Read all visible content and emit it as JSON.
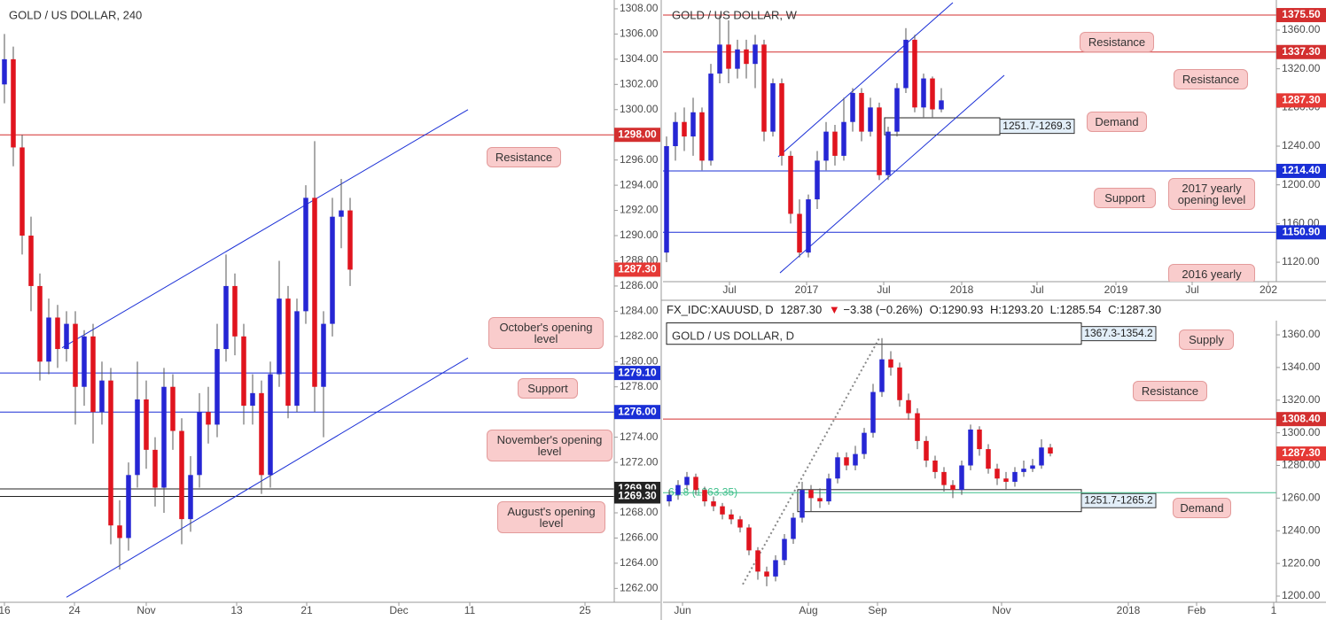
{
  "chart_data": [
    {
      "type": "candlestick",
      "title": "GOLD / US DOLLAR, 240",
      "xlim": [
        -0.5,
        68.8
      ],
      "xticks": [
        {
          "value": 0,
          "label": "16"
        },
        {
          "value": 7.9,
          "label": "24"
        },
        {
          "value": 16,
          "label": "Nov"
        },
        {
          "value": 26.2,
          "label": "13"
        },
        {
          "value": 34.1,
          "label": "21"
        },
        {
          "value": 44.5,
          "label": "Dec"
        },
        {
          "value": 52.5,
          "label": "11"
        },
        {
          "value": 65.5,
          "label": "25"
        }
      ],
      "ylim": [
        1260.9,
        1308.7
      ],
      "yticks": [
        {
          "value": 1262,
          "label": "1262.00"
        },
        {
          "value": 1264,
          "label": "1264.00"
        },
        {
          "value": 1266,
          "label": "1266.00"
        },
        {
          "value": 1268,
          "label": "1268.00"
        },
        {
          "value": 1272,
          "label": "1272.00"
        },
        {
          "value": 1274,
          "label": "1274.00"
        },
        {
          "value": 1278,
          "label": "1278.00"
        },
        {
          "value": 1280,
          "label": "1280.00"
        },
        {
          "value": 1282,
          "label": "1282.00"
        },
        {
          "value": 1284,
          "label": "1284.00"
        },
        {
          "value": 1286,
          "label": "1286.00"
        },
        {
          "value": 1288,
          "label": "1288.00"
        },
        {
          "value": 1290,
          "label": "1290.00"
        },
        {
          "value": 1292,
          "label": "1292.00"
        },
        {
          "value": 1294,
          "label": "1294.00"
        },
        {
          "value": 1296,
          "label": "1296.00"
        },
        {
          "value": 1300,
          "label": "1300.00"
        },
        {
          "value": 1302,
          "label": "1302.00"
        },
        {
          "value": 1304,
          "label": "1304.00"
        },
        {
          "value": 1306,
          "label": "1306.00"
        },
        {
          "value": 1308,
          "label": "1308.00"
        }
      ],
      "up_color": "#2626d4",
      "down_color": "#e0141e",
      "candles": {
        "x": [
          0,
          1,
          2,
          3,
          4,
          5,
          6,
          7,
          8,
          9,
          10,
          11,
          12,
          13,
          14,
          15,
          16,
          17,
          18,
          19,
          20,
          21,
          22,
          23,
          24,
          25,
          26,
          27,
          28,
          29,
          30,
          31,
          32,
          33,
          34,
          35,
          36,
          37,
          38,
          39
        ],
        "open": [
          1302.0,
          1304.0,
          1297.0,
          1290.0,
          1286.0,
          1280.0,
          1283.5,
          1281.0,
          1283.0,
          1278.0,
          1282.0,
          1276.0,
          1278.5,
          1267.0,
          1266.0,
          1271.0,
          1277.0,
          1273.0,
          1270.0,
          1278.0,
          1274.5,
          1267.5,
          1271.0,
          1276.0,
          1275.0,
          1281.0,
          1286.0,
          1282.0,
          1276.5,
          1277.5,
          1271.0,
          1279.0,
          1285.0,
          1276.5,
          1284.0,
          1293.0,
          1278.0,
          1283.0,
          1291.5,
          1292.0
        ],
        "high": [
          1306.0,
          1305.0,
          1298.0,
          1291.5,
          1287.0,
          1285.0,
          1284.5,
          1284.0,
          1284.0,
          1282.5,
          1283.0,
          1280.0,
          1279.5,
          1269.0,
          1272.0,
          1280.0,
          1278.5,
          1274.0,
          1279.5,
          1279.0,
          1275.5,
          1272.5,
          1277.5,
          1278.0,
          1283.0,
          1288.5,
          1287.0,
          1283.0,
          1279.0,
          1278.5,
          1280.0,
          1288.0,
          1286.0,
          1285.0,
          1294.0,
          1297.5,
          1284.0,
          1293.0,
          1294.5,
          1293.0
        ],
        "low": [
          1300.5,
          1295.5,
          1288.5,
          1284.0,
          1278.5,
          1279.0,
          1279.5,
          1280.0,
          1275.0,
          1276.5,
          1273.5,
          1275.0,
          1265.5,
          1263.5,
          1265.0,
          1270.0,
          1271.5,
          1268.5,
          1268.0,
          1273.0,
          1265.5,
          1266.5,
          1270.0,
          1273.5,
          1274.0,
          1280.0,
          1280.5,
          1275.0,
          1275.0,
          1269.5,
          1270.0,
          1278.0,
          1275.5,
          1276.0,
          1283.0,
          1276.0,
          1274.0,
          1282.0,
          1289.0,
          1286.0
        ],
        "close": [
          1304.0,
          1297.0,
          1290.0,
          1286.0,
          1280.0,
          1283.5,
          1281.0,
          1283.0,
          1278.0,
          1282.0,
          1276.0,
          1278.5,
          1267.0,
          1266.0,
          1271.0,
          1277.0,
          1273.0,
          1270.0,
          1278.0,
          1274.5,
          1267.5,
          1271.0,
          1276.0,
          1275.0,
          1281.0,
          1286.0,
          1282.0,
          1276.5,
          1277.5,
          1271.0,
          1279.0,
          1285.0,
          1276.5,
          1284.0,
          1293.0,
          1278.0,
          1283.0,
          1291.5,
          1292.0,
          1287.3
        ]
      },
      "levels": [
        {
          "value": 1298,
          "label": "1298.00",
          "color": "#d32f2f"
        },
        {
          "value": 1279.1,
          "label": "1279.10",
          "color": "#1a2fd6"
        },
        {
          "value": 1276,
          "label": "1276.00",
          "color": "#1a2fd6"
        },
        {
          "value": 1269.9,
          "label": "1269.90",
          "color": "#222222"
        },
        {
          "value": 1269.3,
          "label": "1269.30",
          "color": "#222222"
        }
      ],
      "last": {
        "value": 1287.3,
        "label": "1287.30",
        "color": "#e53935"
      },
      "lines": [
        {
          "x": [
            6.5,
            52.3
          ],
          "y": [
            1281.1,
            1300.0
          ],
          "color": "#1a2fd6"
        },
        {
          "x": [
            7.0,
            52.3
          ],
          "y": [
            1261.3,
            1280.3
          ],
          "color": "#1a2fd6"
        }
      ],
      "callouts": [
        "Resistance",
        "October's opening level",
        "Support",
        "November's opening level",
        "August's opening level"
      ]
    },
    {
      "type": "candlestick",
      "title": "GOLD / US DOLLAR, W",
      "xlim": [
        -0.4,
        68.8
      ],
      "xticks": [
        {
          "value": 7.1,
          "label": "Jul"
        },
        {
          "value": 15.8,
          "label": "2017"
        },
        {
          "value": 24.5,
          "label": "Jul"
        },
        {
          "value": 33.3,
          "label": "2018"
        },
        {
          "value": 41.8,
          "label": "Jul"
        },
        {
          "value": 50.7,
          "label": "2019"
        },
        {
          "value": 59.3,
          "label": "Jul"
        },
        {
          "value": 67.9,
          "label": "202"
        }
      ],
      "ylim": [
        1099.9,
        1391.1
      ],
      "yticks": [
        {
          "value": 1120,
          "label": "1120.00"
        },
        {
          "value": 1160,
          "label": "1160.00"
        },
        {
          "value": 1200,
          "label": "1200.00"
        },
        {
          "value": 1240,
          "label": "1240.00"
        },
        {
          "value": 1280,
          "label": "1280.00"
        },
        {
          "value": 1320,
          "label": "1320.00"
        },
        {
          "value": 1360,
          "label": "1360.00"
        }
      ],
      "up_color": "#2626d4",
      "down_color": "#e0141e",
      "candles": {
        "x": [
          0,
          1,
          2,
          3,
          4,
          5,
          6,
          7,
          8,
          9,
          10,
          11,
          12,
          13,
          14,
          15,
          16,
          17,
          18,
          19,
          20,
          21,
          22,
          23,
          24,
          25,
          26,
          27,
          28,
          29,
          30,
          31
        ],
        "open": [
          1130,
          1240,
          1265,
          1250,
          1275,
          1225,
          1315,
          1345,
          1320,
          1340,
          1325,
          1345,
          1255,
          1305,
          1230,
          1170,
          1130,
          1185,
          1225,
          1255,
          1230,
          1265,
          1295,
          1255,
          1280,
          1210,
          1255,
          1300,
          1350,
          1280,
          1310,
          1278
        ],
        "high": [
          1250,
          1275,
          1280,
          1290,
          1280,
          1325,
          1375,
          1370,
          1350,
          1350,
          1355,
          1350,
          1310,
          1310,
          1235,
          1185,
          1190,
          1235,
          1265,
          1262,
          1290,
          1300,
          1300,
          1290,
          1285,
          1260,
          1305,
          1362,
          1355,
          1315,
          1312,
          1300
        ],
        "low": [
          1120,
          1225,
          1235,
          1230,
          1215,
          1220,
          1305,
          1305,
          1310,
          1310,
          1300,
          1245,
          1250,
          1220,
          1160,
          1125,
          1125,
          1175,
          1215,
          1220,
          1225,
          1255,
          1245,
          1250,
          1205,
          1205,
          1250,
          1295,
          1275,
          1270,
          1270,
          1275
        ],
        "close": [
          1240,
          1265,
          1250,
          1275,
          1225,
          1315,
          1345,
          1320,
          1340,
          1325,
          1345,
          1255,
          1305,
          1230,
          1170,
          1130,
          1185,
          1225,
          1255,
          1230,
          1265,
          1295,
          1255,
          1280,
          1210,
          1255,
          1300,
          1350,
          1280,
          1310,
          1278,
          1287.3
        ]
      },
      "levels": [
        {
          "value": 1375.5,
          "label": "1375.50",
          "color": "#d32f2f"
        },
        {
          "value": 1337.3,
          "label": "1337.30",
          "color": "#d32f2f"
        },
        {
          "value": 1214.4,
          "label": "1214.40",
          "color": "#1a2fd6"
        },
        {
          "value": 1150.9,
          "label": "1150.90",
          "color": "#1a2fd6"
        }
      ],
      "last": {
        "value": 1287.3,
        "label": "1287.30",
        "color": "#e53935"
      },
      "lines": [
        {
          "x": [
            12.6,
            32.3
          ],
          "y": [
            1229,
            1388.4
          ],
          "color": "#1a2fd6"
        },
        {
          "x": [
            12.8,
            38.1
          ],
          "y": [
            1109,
            1313.3
          ],
          "color": "#1a2fd6"
        }
      ],
      "zones": [
        {
          "x": [
            24.6,
            37.6
          ],
          "y": [
            1251.7,
            1269.3
          ],
          "label": "1251.7-1269.3"
        }
      ],
      "callouts": [
        "Resistance",
        "Resistance",
        "Demand",
        "Support",
        "2017 yearly opening level",
        "2016 yearly"
      ]
    },
    {
      "type": "candlestick",
      "title": "GOLD / US DOLLAR, D",
      "xlim": [
        -0.7,
        68.5
      ],
      "xticks": [
        {
          "value": 1.5,
          "label": "Jun"
        },
        {
          "value": 15.7,
          "label": "Aug"
        },
        {
          "value": 23.5,
          "label": "Sep"
        },
        {
          "value": 37.5,
          "label": "Nov"
        },
        {
          "value": 51.8,
          "label": "2018"
        },
        {
          "value": 59.5,
          "label": "Feb"
        },
        {
          "value": 68.2,
          "label": "1"
        }
      ],
      "ylim": [
        1196.2,
        1368.7
      ],
      "yticks": [
        {
          "value": 1200,
          "label": "1200.00"
        },
        {
          "value": 1220,
          "label": "1220.00"
        },
        {
          "value": 1240,
          "label": "1240.00"
        },
        {
          "value": 1260,
          "label": "1260.00"
        },
        {
          "value": 1280,
          "label": "1280.00"
        },
        {
          "value": 1300,
          "label": "1300.00"
        },
        {
          "value": 1320,
          "label": "1320.00"
        },
        {
          "value": 1340,
          "label": "1340.00"
        },
        {
          "value": 1360,
          "label": "1360.00"
        }
      ],
      "up_color": "#2626d4",
      "down_color": "#e0141e",
      "candles": {
        "x": [
          0,
          1,
          2,
          3,
          4,
          5,
          6,
          7,
          8,
          9,
          10,
          11,
          12,
          13,
          14,
          15,
          16,
          17,
          18,
          19,
          20,
          21,
          22,
          23,
          24,
          25,
          26,
          27,
          28,
          29,
          30,
          31,
          32,
          33,
          34,
          35,
          36,
          37,
          38,
          39,
          40,
          41,
          42,
          43
        ],
        "open": [
          1258,
          1262,
          1268,
          1273,
          1265,
          1258,
          1255,
          1250,
          1247,
          1242,
          1228,
          1215,
          1212,
          1222,
          1235,
          1248,
          1265,
          1260,
          1258,
          1272,
          1285,
          1280,
          1287,
          1300,
          1325,
          1345,
          1340,
          1320,
          1312,
          1295,
          1283,
          1276,
          1268,
          1265,
          1280,
          1302,
          1290,
          1278,
          1272,
          1270,
          1276,
          1278,
          1280,
          1291
        ],
        "high": [
          1265,
          1271,
          1276,
          1275,
          1267,
          1261,
          1257,
          1253,
          1249,
          1244,
          1230,
          1218,
          1225,
          1238,
          1251,
          1270,
          1268,
          1266,
          1275,
          1288,
          1288,
          1292,
          1303,
          1330,
          1358,
          1350,
          1343,
          1324,
          1315,
          1298,
          1286,
          1279,
          1271,
          1283,
          1305,
          1304,
          1293,
          1281,
          1276,
          1279,
          1283,
          1284,
          1296,
          1293.2
        ],
        "low": [
          1255,
          1259,
          1265,
          1262,
          1255,
          1252,
          1247,
          1244,
          1239,
          1225,
          1210,
          1206,
          1209,
          1219,
          1232,
          1245,
          1252,
          1254,
          1256,
          1269,
          1277,
          1277,
          1284,
          1297,
          1322,
          1335,
          1316,
          1308,
          1290,
          1279,
          1272,
          1264,
          1260,
          1262,
          1277,
          1286,
          1275,
          1268,
          1265,
          1267,
          1273,
          1276,
          1278,
          1285.54
        ],
        "close": [
          1262,
          1268,
          1273,
          1265,
          1258,
          1255,
          1250,
          1247,
          1242,
          1228,
          1215,
          1212,
          1222,
          1235,
          1248,
          1265,
          1260,
          1258,
          1272,
          1285,
          1280,
          1287,
          1300,
          1325,
          1345,
          1340,
          1320,
          1312,
          1295,
          1283,
          1276,
          1268,
          1265,
          1280,
          1302,
          1290,
          1278,
          1272,
          1270,
          1276,
          1278,
          1280,
          1291,
          1287.3
        ]
      },
      "levels": [
        {
          "value": 1308.4,
          "label": "1308.40",
          "color": "#d32f2f"
        }
      ],
      "last": {
        "value": 1287.3,
        "label": "1287.30",
        "color": "#e53935"
      },
      "fib": {
        "value": 1263.35,
        "label": "61.8 (1263.35)",
        "color": "#3dbf8a"
      },
      "lines": [
        {
          "x": [
            8.3,
            23.8
          ],
          "y": [
            1207.2,
            1358.9
          ],
          "color": "#888888",
          "dotted": true
        }
      ],
      "zones": [
        {
          "x": [
            -0.3,
            46.5
          ],
          "y": [
            1354.2,
            1367.3
          ],
          "label": "1367.3-1354.2"
        },
        {
          "x": [
            14.5,
            46.5
          ],
          "y": [
            1251.7,
            1265.2
          ],
          "label": "1251.7-1265.2"
        }
      ],
      "callouts": [
        "Supply",
        "Resistance",
        "Demand"
      ]
    }
  ],
  "header": {
    "symbol": "FX_IDC:XAUUSD, D",
    "last": "1287.30",
    "arrow": "▼",
    "change": "−3.38 (−0.26%)",
    "o_label": "O:",
    "o": "1290.93",
    "h_label": "H:",
    "h": "1293.20",
    "l_label": "L:",
    "l": "1285.54",
    "c_label": "C:",
    "c": "1287.30"
  }
}
